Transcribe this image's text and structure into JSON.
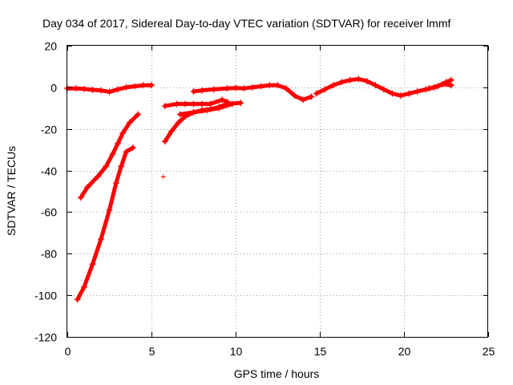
{
  "chart_data": {
    "type": "scatter",
    "title": "Day 034 of 2017, Sidereal Day-to-day VTEC variation (SDTVAR) for receiver lmmf",
    "xlabel": "GPS time / hours",
    "ylabel": "SDTVAR / TECUs",
    "xlim": [
      0,
      25
    ],
    "ylim": [
      -120,
      20
    ],
    "xticks": [
      0,
      5,
      10,
      15,
      20,
      25
    ],
    "yticks": [
      20,
      0,
      -20,
      -40,
      -60,
      -80,
      -100,
      -120
    ],
    "grid": true,
    "marker": "+",
    "color": "#ff0000",
    "series": [
      {
        "points": [
          [
            0.0,
            -0.5
          ],
          [
            0.5,
            -0.5
          ],
          [
            1.0,
            -0.8
          ],
          [
            1.5,
            -1.2
          ],
          [
            2.0,
            -1.5
          ],
          [
            2.5,
            -2.2
          ],
          [
            3.0,
            -1.0
          ],
          [
            3.5,
            0.0
          ],
          [
            4.0,
            0.5
          ],
          [
            4.5,
            1.0
          ],
          [
            5.0,
            1.0
          ]
        ]
      },
      {
        "points": [
          [
            0.8,
            -53
          ],
          [
            1.2,
            -48
          ],
          [
            1.8,
            -43
          ],
          [
            2.3,
            -38
          ],
          [
            2.7,
            -32
          ],
          [
            3.0,
            -27
          ],
          [
            3.3,
            -22
          ],
          [
            3.7,
            -17
          ],
          [
            4.2,
            -13
          ]
        ]
      },
      {
        "points": [
          [
            0.6,
            -102
          ],
          [
            1.0,
            -96
          ],
          [
            1.5,
            -85
          ],
          [
            2.0,
            -73
          ],
          [
            2.5,
            -59
          ],
          [
            2.9,
            -46
          ],
          [
            3.2,
            -38
          ],
          [
            3.5,
            -31
          ],
          [
            3.9,
            -29
          ]
        ]
      },
      {
        "points": [
          [
            5.7,
            -43
          ]
        ]
      },
      {
        "points": [
          [
            5.8,
            -26
          ],
          [
            6.2,
            -21
          ],
          [
            6.6,
            -17
          ],
          [
            7.0,
            -14
          ],
          [
            7.5,
            -12
          ],
          [
            8.0,
            -11
          ],
          [
            8.5,
            -10.5
          ],
          [
            9.0,
            -9.5
          ],
          [
            9.5,
            -8
          ],
          [
            10.3,
            -7.5
          ]
        ]
      },
      {
        "points": [
          [
            5.8,
            -9
          ],
          [
            6.5,
            -8
          ],
          [
            7.0,
            -8
          ],
          [
            7.5,
            -8
          ],
          [
            8.0,
            -8
          ],
          [
            8.5,
            -8
          ],
          [
            9.2,
            -6
          ],
          [
            9.5,
            -7
          ]
        ]
      },
      {
        "points": [
          [
            6.7,
            -13
          ],
          [
            7.5,
            -12
          ],
          [
            8.3,
            -11
          ],
          [
            9.0,
            -10
          ],
          [
            9.8,
            -8
          ]
        ]
      },
      {
        "points": [
          [
            7.5,
            -2
          ],
          [
            8.0,
            -1.5
          ],
          [
            8.7,
            -1
          ],
          [
            9.5,
            -0.5
          ],
          [
            10.0,
            -0.3
          ],
          [
            10.5,
            -0.5
          ],
          [
            11.0,
            0
          ],
          [
            11.5,
            0.5
          ],
          [
            12.0,
            1
          ],
          [
            12.5,
            1
          ],
          [
            13.0,
            -0.5
          ],
          [
            13.5,
            -4
          ],
          [
            14.0,
            -6
          ],
          [
            14.5,
            -4.5
          ]
        ]
      },
      {
        "points": [
          [
            14.8,
            -3
          ],
          [
            15.3,
            -1
          ],
          [
            15.8,
            1
          ],
          [
            16.3,
            2.5
          ],
          [
            16.8,
            3.5
          ],
          [
            17.3,
            4
          ],
          [
            17.8,
            3
          ],
          [
            18.3,
            1
          ],
          [
            18.8,
            -1
          ],
          [
            19.3,
            -3
          ],
          [
            19.8,
            -4
          ],
          [
            20.3,
            -3
          ],
          [
            20.8,
            -2
          ],
          [
            21.3,
            -1
          ],
          [
            21.8,
            0
          ],
          [
            22.3,
            1.5
          ],
          [
            22.8,
            1
          ]
        ]
      },
      {
        "points": [
          [
            21.5,
            -0.5
          ],
          [
            22.0,
            0.5
          ],
          [
            22.5,
            2.5
          ],
          [
            22.8,
            3.5
          ]
        ]
      }
    ]
  }
}
